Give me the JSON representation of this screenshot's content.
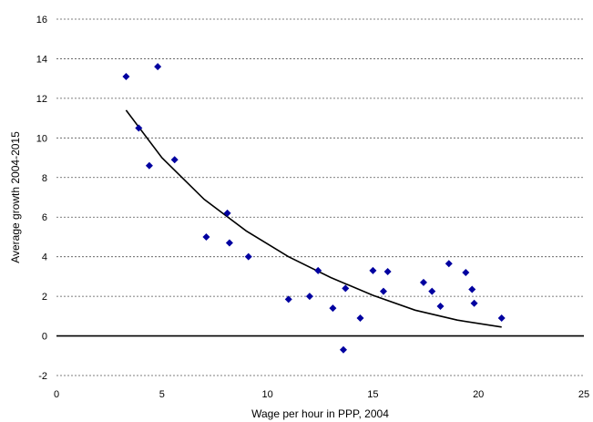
{
  "chart_data": {
    "type": "scatter",
    "xlabel": "Wage per hour in PPP, 2004",
    "ylabel": "Average growth 2004-2015",
    "xlim": [
      0,
      25
    ],
    "ylim": [
      -2,
      16
    ],
    "x_ticks": [
      0,
      5,
      10,
      15,
      20,
      25
    ],
    "y_ticks": [
      -2,
      0,
      2,
      4,
      6,
      8,
      10,
      12,
      14,
      16
    ],
    "grid": "horizontal dashed",
    "marker": "diamond",
    "marker_color": "#0000a0",
    "trendline_color": "#000000",
    "series": [
      {
        "points": [
          [
            3.3,
            13.1
          ],
          [
            3.9,
            10.5
          ],
          [
            4.4,
            8.6
          ],
          [
            4.8,
            13.6
          ],
          [
            5.6,
            8.9
          ],
          [
            7.1,
            5.0
          ],
          [
            8.1,
            6.2
          ],
          [
            8.2,
            4.7
          ],
          [
            9.1,
            4.0
          ],
          [
            11.0,
            1.85
          ],
          [
            12.0,
            2.0
          ],
          [
            12.4,
            3.3
          ],
          [
            13.1,
            1.4
          ],
          [
            13.6,
            -0.7
          ],
          [
            13.7,
            2.4
          ],
          [
            14.4,
            0.9
          ],
          [
            15.0,
            3.3
          ],
          [
            15.5,
            2.25
          ],
          [
            15.7,
            3.25
          ],
          [
            17.4,
            2.7
          ],
          [
            17.8,
            2.25
          ],
          [
            18.2,
            1.5
          ],
          [
            18.6,
            3.65
          ],
          [
            19.4,
            3.2
          ],
          [
            19.7,
            2.35
          ],
          [
            19.8,
            1.65
          ],
          [
            21.1,
            0.9
          ]
        ]
      }
    ],
    "trendline": {
      "type": "fitted curve",
      "x": [
        3.3,
        5,
        7,
        9,
        11,
        13,
        15,
        17,
        19,
        21.1
      ],
      "y": [
        11.4,
        9.0,
        6.9,
        5.3,
        4.0,
        2.95,
        2.05,
        1.3,
        0.8,
        0.45
      ]
    }
  }
}
